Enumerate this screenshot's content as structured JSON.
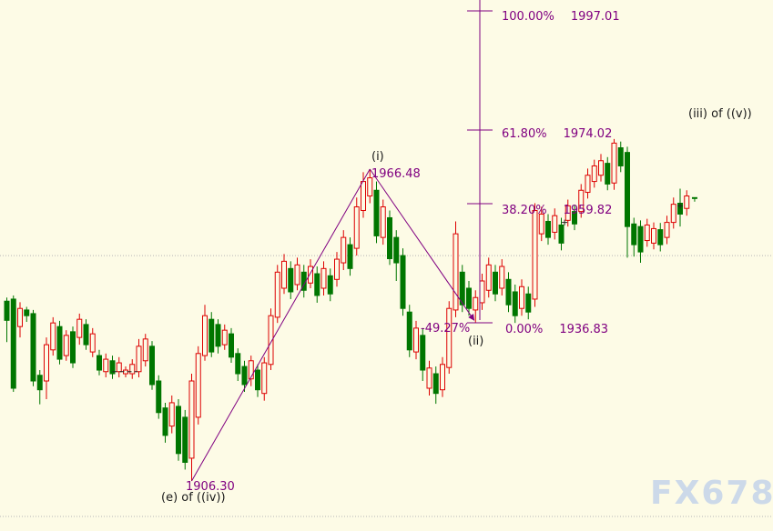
{
  "app": {
    "watermark": "FX678"
  },
  "chart_data": {
    "type": "candlestick",
    "title": "",
    "legend_position": "none",
    "grid": "two dotted horizontal reference lines",
    "colors": {
      "up": "#dd0000",
      "down": "#007600",
      "fib": "#800080",
      "text_dark": "#1a1a1a",
      "grid": "#b5b5b5",
      "background": "#fdfbe6",
      "watermark": "#ccd9e9"
    },
    "price_range_implied": [
      1899.5,
      1999.1
    ],
    "gridlines_price": [
      1949.8,
      1899.46
    ],
    "fibonacci": {
      "kind": "fibonacci projection from 0.00% low",
      "levels": [
        {
          "pct": "100.00%",
          "price": "1997.01"
        },
        {
          "pct": "61.80%",
          "price": "1974.02"
        },
        {
          "pct": "38.20%",
          "price": "1959.82"
        },
        {
          "pct": "0.00%",
          "price": "1936.83"
        }
      ],
      "retracement_label": "-49.27%"
    },
    "annotations": {
      "wave_i": "(i)",
      "wave_ii": "(ii)",
      "wave_iii": "(iii) of ((v))",
      "wave_e": "(e) of ((iv))",
      "peak_price": "1966.48",
      "low_price": "1906.30"
    },
    "trendlines": [
      {
        "from": {
          "bar": 28,
          "price": 1906.3
        },
        "to": {
          "bar": 55,
          "price": 1966.48
        },
        "arrow": false
      },
      {
        "from": {
          "bar": 55,
          "price": 1966.48
        },
        "to": {
          "bar": 70.8,
          "price": 1937.3
        },
        "arrow": true
      }
    ],
    "markers": [
      {
        "type": "dash",
        "from_bar": 16.0,
        "to_bar": 19.8,
        "price": 1927.4
      },
      {
        "type": "plus",
        "bar": 84.5,
        "price": 1956.2
      },
      {
        "type": "plus",
        "bar": 102.0,
        "price": 1959.4
      },
      {
        "type": "t",
        "bar": 104.2,
        "price": 1960.9
      }
    ],
    "candles_format": [
      "open",
      "high",
      "low",
      "close"
    ],
    "candles": [
      [
        1941.0,
        1941.7,
        1933.1,
        1937.3
      ],
      [
        1941.4,
        1942.1,
        1923.5,
        1924.2
      ],
      [
        1936.1,
        1940.8,
        1934.0,
        1939.6
      ],
      [
        1939.3,
        1939.9,
        1937.0,
        1938.2
      ],
      [
        1938.6,
        1939.3,
        1924.6,
        1925.6
      ],
      [
        1926.7,
        1927.7,
        1921.1,
        1923.9
      ],
      [
        1925.6,
        1934.0,
        1922.1,
        1932.6
      ],
      [
        1931.6,
        1937.9,
        1930.5,
        1936.8
      ],
      [
        1936.1,
        1937.2,
        1928.8,
        1929.8
      ],
      [
        1930.5,
        1935.4,
        1929.5,
        1934.4
      ],
      [
        1935.1,
        1936.1,
        1928.1,
        1929.1
      ],
      [
        1934.0,
        1938.6,
        1932.6,
        1937.5
      ],
      [
        1936.5,
        1937.5,
        1931.6,
        1932.6
      ],
      [
        1931.2,
        1935.8,
        1930.2,
        1934.7
      ],
      [
        1930.5,
        1931.6,
        1926.7,
        1927.7
      ],
      [
        1927.4,
        1930.9,
        1926.3,
        1929.8
      ],
      [
        1929.5,
        1930.5,
        1926.0,
        1927.0
      ],
      [
        1927.4,
        1930.2,
        1926.3,
        1929.1
      ],
      [
        1927.0,
        1928.4,
        1926.3,
        1927.7
      ],
      [
        1927.0,
        1929.8,
        1926.0,
        1928.8
      ],
      [
        1927.4,
        1933.7,
        1926.3,
        1932.3
      ],
      [
        1929.5,
        1934.7,
        1928.4,
        1933.7
      ],
      [
        1932.3,
        1933.3,
        1923.9,
        1924.9
      ],
      [
        1925.6,
        1926.7,
        1918.3,
        1919.5
      ],
      [
        1920.4,
        1921.4,
        1913.7,
        1915.1
      ],
      [
        1916.9,
        1922.8,
        1915.5,
        1921.4
      ],
      [
        1920.7,
        1922.1,
        1910.2,
        1911.6
      ],
      [
        1918.6,
        1920.0,
        1908.5,
        1909.9
      ],
      [
        1910.7,
        1927.0,
        1906.3,
        1925.6
      ],
      [
        1918.6,
        1932.3,
        1917.2,
        1930.9
      ],
      [
        1930.5,
        1940.3,
        1929.5,
        1938.2
      ],
      [
        1937.5,
        1938.9,
        1930.2,
        1931.2
      ],
      [
        1936.5,
        1937.5,
        1930.9,
        1932.3
      ],
      [
        1932.6,
        1936.5,
        1931.6,
        1935.4
      ],
      [
        1934.7,
        1935.8,
        1929.1,
        1930.2
      ],
      [
        1930.9,
        1931.9,
        1925.6,
        1927.0
      ],
      [
        1928.4,
        1929.5,
        1923.5,
        1924.9
      ],
      [
        1926.0,
        1930.5,
        1924.6,
        1929.5
      ],
      [
        1927.7,
        1928.8,
        1922.5,
        1923.9
      ],
      [
        1923.2,
        1930.2,
        1921.8,
        1929.1
      ],
      [
        1928.8,
        1939.6,
        1927.7,
        1938.2
      ],
      [
        1937.9,
        1948.0,
        1936.8,
        1946.6
      ],
      [
        1943.5,
        1950.1,
        1942.4,
        1948.7
      ],
      [
        1947.3,
        1948.7,
        1941.4,
        1942.8
      ],
      [
        1944.2,
        1949.4,
        1943.1,
        1948.0
      ],
      [
        1946.6,
        1948.0,
        1941.7,
        1943.1
      ],
      [
        1944.5,
        1949.1,
        1943.5,
        1947.7
      ],
      [
        1946.3,
        1947.7,
        1940.7,
        1942.1
      ],
      [
        1943.5,
        1948.7,
        1942.1,
        1947.3
      ],
      [
        1945.9,
        1947.3,
        1941.0,
        1942.4
      ],
      [
        1945.2,
        1950.5,
        1943.8,
        1949.1
      ],
      [
        1948.4,
        1954.7,
        1947.0,
        1953.3
      ],
      [
        1951.9,
        1953.3,
        1945.9,
        1947.3
      ],
      [
        1951.2,
        1961.0,
        1949.8,
        1959.2
      ],
      [
        1958.5,
        1965.9,
        1957.1,
        1964.1
      ],
      [
        1961.3,
        1966.48,
        1959.9,
        1964.8
      ],
      [
        1962.4,
        1964.1,
        1952.2,
        1953.6
      ],
      [
        1953.3,
        1960.6,
        1951.9,
        1959.2
      ],
      [
        1957.1,
        1958.5,
        1948.0,
        1949.2
      ],
      [
        1953.3,
        1954.7,
        1944.9,
        1948.4
      ],
      [
        1949.8,
        1951.2,
        1938.2,
        1939.6
      ],
      [
        1938.9,
        1940.3,
        1930.2,
        1931.6
      ],
      [
        1931.2,
        1937.2,
        1929.8,
        1935.8
      ],
      [
        1934.4,
        1935.8,
        1925.6,
        1927.7
      ],
      [
        1924.2,
        1929.5,
        1922.8,
        1928.1
      ],
      [
        1927.0,
        1928.4,
        1921.2,
        1923.2
      ],
      [
        1923.9,
        1930.2,
        1922.5,
        1928.8
      ],
      [
        1928.2,
        1941.0,
        1927.0,
        1939.6
      ],
      [
        1939.3,
        1956.4,
        1937.9,
        1954.0
      ],
      [
        1946.6,
        1948.0,
        1938.9,
        1940.3
      ],
      [
        1943.5,
        1944.9,
        1938.2,
        1939.6
      ],
      [
        1939.3,
        1943.1,
        1936.83,
        1941.7
      ],
      [
        1940.7,
        1946.3,
        1939.3,
        1944.9
      ],
      [
        1943.1,
        1949.4,
        1941.7,
        1948.0
      ],
      [
        1946.6,
        1948.0,
        1941.0,
        1942.4
      ],
      [
        1943.5,
        1949.1,
        1942.1,
        1947.7
      ],
      [
        1945.2,
        1946.6,
        1938.9,
        1940.3
      ],
      [
        1942.8,
        1944.2,
        1936.8,
        1938.2
      ],
      [
        1939.6,
        1945.2,
        1938.2,
        1943.8
      ],
      [
        1942.4,
        1943.8,
        1937.5,
        1938.9
      ],
      [
        1941.4,
        1959.9,
        1939.9,
        1958.5
      ],
      [
        1954.0,
        1959.2,
        1952.6,
        1957.8
      ],
      [
        1956.4,
        1957.8,
        1951.9,
        1953.3
      ],
      [
        1954.3,
        1958.9,
        1952.9,
        1957.5
      ],
      [
        1955.7,
        1957.1,
        1950.8,
        1952.2
      ],
      [
        1956.6,
        1960.6,
        1955.4,
        1959.4
      ],
      [
        1958.3,
        1959.6,
        1954.7,
        1955.9
      ],
      [
        1958.3,
        1963.6,
        1957.1,
        1962.4
      ],
      [
        1962.0,
        1966.6,
        1960.8,
        1965.3
      ],
      [
        1964.1,
        1968.3,
        1962.9,
        1967.1
      ],
      [
        1965.3,
        1969.4,
        1964.1,
        1968.1
      ],
      [
        1967.6,
        1968.8,
        1962.4,
        1963.6
      ],
      [
        1963.8,
        1972.3,
        1962.5,
        1971.5
      ],
      [
        1970.6,
        1971.8,
        1965.9,
        1967.1
      ],
      [
        1969.7,
        1970.8,
        1949.4,
        1955.4
      ],
      [
        1955.9,
        1957.1,
        1949.6,
        1951.9
      ],
      [
        1955.4,
        1956.6,
        1948.4,
        1950.5
      ],
      [
        1952.7,
        1956.9,
        1951.5,
        1955.7
      ],
      [
        1952.2,
        1956.2,
        1951.0,
        1955.0
      ],
      [
        1954.8,
        1956.1,
        1950.6,
        1951.9
      ],
      [
        1953.3,
        1957.5,
        1952.0,
        1956.2
      ],
      [
        1956.2,
        1961.0,
        1955.0,
        1959.7
      ],
      [
        1959.9,
        1962.7,
        1955.4,
        1957.8
      ],
      [
        1958.9,
        1962.4,
        1957.5,
        1961.3
      ]
    ]
  }
}
